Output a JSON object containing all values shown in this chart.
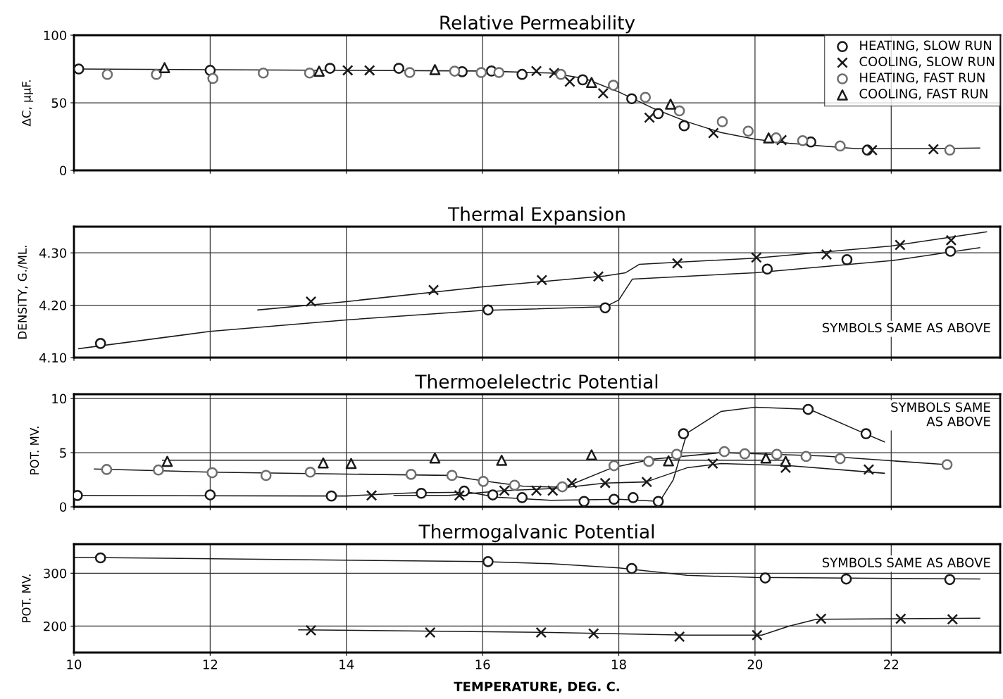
{
  "chart_data": [
    {
      "type": "scatter",
      "title": "Relative Permeability",
      "ylabel": "ΔC, μμF.",
      "xlim": [
        10,
        23.6
      ],
      "xticks": [
        10,
        12,
        14,
        16,
        18,
        20,
        22
      ],
      "ylim": [
        0,
        100
      ],
      "yticks": [
        0,
        50,
        100
      ],
      "grid": true,
      "legend": "top right",
      "tick_labels": "y",
      "series": [
        {
          "name": "HEATING, SLOW RUN",
          "type": "scatter",
          "marker": "circle",
          "color": "#1a1a1a",
          "x": [
            10.07,
            12.0,
            13.76,
            14.77,
            15.7,
            16.13,
            16.58,
            17.47,
            18.19,
            18.58,
            18.96,
            20.82,
            21.65
          ],
          "values": [
            75,
            74,
            75.5,
            75.5,
            73,
            73.5,
            71,
            67,
            53,
            42,
            33,
            21,
            15
          ]
        },
        {
          "name": "COOLING, SLOW RUN",
          "type": "scatter",
          "marker": "cross",
          "color": "#1a1a1a",
          "x": [
            14.02,
            14.34,
            16.79,
            17.05,
            17.28,
            17.77,
            18.45,
            19.39,
            20.39,
            21.72,
            22.62
          ],
          "values": [
            74,
            74,
            73.5,
            72,
            65.6,
            57,
            39,
            27.6,
            22.4,
            15,
            15.6
          ]
        },
        {
          "name": "HEATING, FAST RUN",
          "marker": "circle",
          "color": "#6e6e6e",
          "x": [
            10.49,
            11.21,
            12.04,
            12.78,
            13.46,
            14.93,
            15.59,
            15.98,
            16.24,
            17.15,
            17.92,
            18.39,
            18.89,
            19.52,
            19.9,
            20.31,
            20.7,
            21.25,
            22.86
          ],
          "values": [
            71,
            71,
            68,
            72,
            72,
            72.4,
            73.4,
            72.4,
            72.4,
            71,
            63,
            54,
            44,
            36,
            29,
            24,
            22,
            18,
            15
          ]
        },
        {
          "name": "COOLING, FAST RUN",
          "type": "scatter",
          "marker": "triangle",
          "color": "#1a1a1a",
          "x": [
            11.33,
            13.6,
            15.3,
            17.6,
            18.76,
            20.2
          ],
          "values": [
            76,
            73.4,
            74.5,
            65,
            49,
            24
          ]
        },
        {
          "type": "line",
          "marker": "none",
          "color": "#1a1a1a",
          "x": [
            10,
            12,
            14,
            16,
            17,
            17.5,
            18,
            18.5,
            19,
            19.5,
            20,
            20.5,
            21,
            21.5,
            22,
            22.5,
            23.3
          ],
          "values": [
            75,
            74.5,
            74,
            73.5,
            72,
            68,
            58,
            46,
            36,
            28,
            23,
            20,
            18,
            16,
            16,
            16,
            16.5
          ]
        }
      ]
    },
    {
      "type": "scatter",
      "title": "Thermal Expansion",
      "ylabel": "DENSITY, G./ML.",
      "xlim": [
        10,
        23.6
      ],
      "xticks": [
        10,
        12,
        14,
        16,
        18,
        20,
        22
      ],
      "ylim": [
        4.1,
        4.35
      ],
      "yticks": [
        {
          "value": 4.1,
          "label": "4.10"
        },
        {
          "value": 4.2,
          "label": "4.20"
        },
        {
          "value": 4.3,
          "label": "4.30"
        }
      ],
      "grid": true,
      "tick_labels": "y",
      "annotations": [
        "SYMBOLS SAME AS ABOVE"
      ],
      "series": [
        {
          "type": "scatter",
          "marker": "circle",
          "color": "#1a1a1a",
          "x": [
            10.39,
            16.08,
            17.8,
            20.18,
            21.35,
            22.87
          ],
          "values": [
            4.127,
            4.191,
            4.195,
            4.269,
            4.287,
            4.303
          ]
        },
        {
          "type": "scatter",
          "marker": "cross",
          "color": "#1a1a1a",
          "x": [
            13.48,
            15.28,
            16.87,
            17.7,
            18.86,
            20.02,
            21.05,
            22.13,
            22.88
          ],
          "values": [
            4.207,
            4.229,
            4.248,
            4.255,
            4.28,
            4.291,
            4.297,
            4.315,
            4.324
          ]
        },
        {
          "type": "line",
          "marker": "none",
          "color": "#1a1a1a",
          "x": [
            10.07,
            12,
            14,
            16,
            17.8,
            18.0,
            18.2,
            20,
            22,
            23.3
          ],
          "values": [
            4.117,
            4.15,
            4.172,
            4.19,
            4.197,
            4.21,
            4.25,
            4.262,
            4.285,
            4.31
          ]
        },
        {
          "type": "line",
          "marker": "none",
          "color": "#1a1a1a",
          "x": [
            12.7,
            14,
            16,
            17.8,
            18.1,
            18.3,
            20,
            22,
            23.4
          ],
          "values": [
            4.191,
            4.207,
            4.235,
            4.256,
            4.262,
            4.278,
            4.29,
            4.313,
            4.34
          ]
        }
      ]
    },
    {
      "type": "scatter",
      "title": "Thermoelelectric Potential",
      "ylabel": "POT. MV.",
      "xlim": [
        10,
        23.6
      ],
      "xticks": [
        10,
        12,
        14,
        16,
        18,
        20,
        22
      ],
      "ylim": [
        0,
        10.4
      ],
      "yticks": [
        0,
        5,
        10
      ],
      "grid": true,
      "tick_labels": "y",
      "annotations": [
        "SYMBOLS SAME\nAS ABOVE"
      ],
      "series": [
        {
          "type": "scatter",
          "marker": "circle",
          "color": "#1a1a1a",
          "x": [
            10.05,
            12.0,
            13.78,
            15.1,
            15.73,
            16.15,
            16.58,
            17.49,
            17.93,
            18.21,
            18.58,
            18.95,
            20.78,
            21.63
          ],
          "values": [
            1.05,
            1.1,
            1.0,
            1.25,
            1.45,
            1.1,
            0.85,
            0.5,
            0.7,
            0.85,
            0.5,
            6.75,
            9.0,
            6.75
          ]
        },
        {
          "type": "scatter",
          "marker": "cross",
          "color": "#1a1a1a",
          "x": [
            14.37,
            15.66,
            16.32,
            16.79,
            17.03,
            17.31,
            17.8,
            18.41,
            19.38,
            20.45,
            21.67
          ],
          "values": [
            1.05,
            1.05,
            1.5,
            1.5,
            1.5,
            2.2,
            2.2,
            2.3,
            4.0,
            3.6,
            3.45
          ]
        },
        {
          "marker": "circle",
          "color": "#6e6e6e",
          "x": [
            10.48,
            11.24,
            12.03,
            12.82,
            13.47,
            14.95,
            15.55,
            16.01,
            16.47,
            17.17,
            17.93,
            18.44,
            18.85,
            19.55,
            19.85,
            20.32,
            20.75,
            21.25,
            22.82
          ],
          "values": [
            3.45,
            3.4,
            3.15,
            2.9,
            3.2,
            3.0,
            2.9,
            2.35,
            2.0,
            1.85,
            3.8,
            4.2,
            4.85,
            5.1,
            4.9,
            4.85,
            4.65,
            4.45,
            3.9
          ]
        },
        {
          "type": "scatter",
          "marker": "triangle",
          "color": "#1a1a1a",
          "x": [
            11.37,
            13.66,
            14.07,
            15.3,
            16.28,
            17.6,
            18.73,
            20.16,
            20.45
          ],
          "values": [
            4.2,
            4.05,
            4.0,
            4.5,
            4.3,
            4.8,
            4.25,
            4.5,
            4.2
          ]
        },
        {
          "type": "line",
          "marker": "none",
          "color": "#1a1a1a",
          "x": [
            10,
            14,
            15,
            15.8,
            16.2,
            17,
            18,
            18.6,
            18.8,
            19.0,
            19.5,
            20,
            20.8,
            21.6,
            21.9
          ],
          "values": [
            1.05,
            1.0,
            1.3,
            1.35,
            0.9,
            0.6,
            0.7,
            0.5,
            2.5,
            6.8,
            8.8,
            9.2,
            9.0,
            6.8,
            6.0
          ]
        },
        {
          "type": "line",
          "marker": "none",
          "color": "#1a1a1a",
          "x": [
            10.3,
            12,
            15.5,
            16,
            16.6,
            17.2,
            17.9,
            18.5,
            19.5,
            21,
            22.8
          ],
          "values": [
            3.5,
            3.2,
            2.9,
            2.4,
            1.9,
            1.8,
            3.6,
            4.4,
            5.0,
            4.7,
            3.9
          ]
        },
        {
          "type": "line",
          "marker": "none",
          "color": "#1a1a1a",
          "x": [
            14.7,
            15.5,
            16.3,
            17.1,
            17.8,
            18.4,
            19,
            19.5,
            20.5,
            21.9
          ],
          "values": [
            1.05,
            1.05,
            1.5,
            1.7,
            2.2,
            2.3,
            3.6,
            4.0,
            3.8,
            3.1
          ]
        },
        {
          "type": "line",
          "marker": "none",
          "color": "#1a1a1a",
          "x": [
            11.3,
            20.5
          ],
          "values": [
            4.3,
            4.3
          ]
        }
      ]
    },
    {
      "type": "scatter",
      "title": "Thermogalvanic Potential",
      "ylabel": "POT. MV.",
      "xlabel": "TEMPERATURE, DEG. C.",
      "xlim": [
        10,
        23.6
      ],
      "xticks": [
        10,
        12,
        14,
        16,
        18,
        20,
        22
      ],
      "ylim": [
        150,
        355
      ],
      "yticks": [
        200,
        300
      ],
      "grid": true,
      "annotations": [
        "SYMBOLS SAME AS ABOVE"
      ],
      "series": [
        {
          "type": "scatter",
          "marker": "circle",
          "color": "#1a1a1a",
          "x": [
            10.39,
            16.08,
            18.19,
            20.15,
            21.34,
            22.86
          ],
          "values": [
            329,
            322,
            309,
            291,
            289,
            288
          ]
        },
        {
          "type": "scatter",
          "marker": "cross",
          "color": "#1a1a1a",
          "x": [
            13.48,
            15.23,
            16.86,
            17.63,
            18.89,
            20.03,
            20.97,
            22.14,
            22.9
          ],
          "values": [
            192,
            188,
            188,
            186,
            180,
            183,
            214,
            214,
            213
          ]
        },
        {
          "type": "line",
          "marker": "none",
          "color": "#1a1a1a",
          "x": [
            10,
            16,
            17,
            18,
            19,
            20,
            23.3
          ],
          "values": [
            330,
            322,
            318,
            310,
            296,
            292,
            289
          ]
        },
        {
          "type": "line",
          "marker": "none",
          "color": "#1a1a1a",
          "x": [
            13.3,
            17,
            19,
            20.1,
            20.5,
            20.9,
            23.3
          ],
          "values": [
            193,
            188,
            183,
            183,
            200,
            213,
            215
          ]
        }
      ]
    }
  ]
}
